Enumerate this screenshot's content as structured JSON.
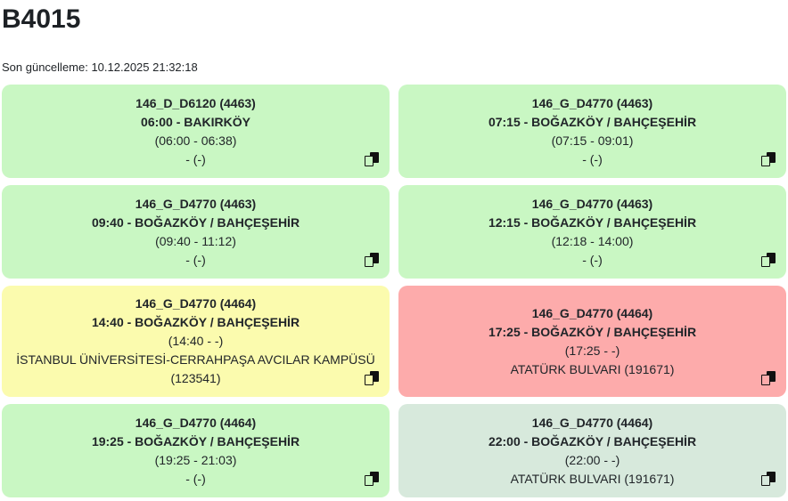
{
  "page": {
    "title": "B4015",
    "last_update": "Son güncelleme: 10.12.2025 21:32:18"
  },
  "colors": {
    "green_completed": "#c9f7c3",
    "yellow_warning": "#fbfbae",
    "red_alert": "#fdabab",
    "pale_green_pending": "#d7e9dc",
    "text": "#212529",
    "icon": "#111111"
  },
  "cards": [
    {
      "route_code": "146_D_D6120 (4463)",
      "destination": "06:00 - BAKIRKÖY",
      "time_range": "(06:00 - 06:38)",
      "note": "- (-)",
      "bg": "#c9f7c3",
      "status": "green"
    },
    {
      "route_code": "146_G_D4770 (4463)",
      "destination": "07:15 - BOĞAZKÖY / BAHÇEŞEHİR",
      "time_range": "(07:15 - 09:01)",
      "note": "- (-)",
      "bg": "#c9f7c3",
      "status": "green"
    },
    {
      "route_code": "146_G_D4770 (4463)",
      "destination": "09:40 - BOĞAZKÖY / BAHÇEŞEHİR",
      "time_range": "(09:40 - 11:12)",
      "note": "- (-)",
      "bg": "#c9f7c3",
      "status": "green"
    },
    {
      "route_code": "146_G_D4770 (4463)",
      "destination": "12:15 - BOĞAZKÖY / BAHÇEŞEHİR",
      "time_range": "(12:18 - 14:00)",
      "note": "- (-)",
      "bg": "#c9f7c3",
      "status": "green"
    },
    {
      "route_code": "146_G_D4770 (4464)",
      "destination": "14:40 - BOĞAZKÖY / BAHÇEŞEHİR",
      "time_range": "(14:40 - -)",
      "note": "İSTANBUL ÜNİVERSİTESİ-CERRAHPAŞA AVCILAR KAMPÜSÜ (123541)",
      "bg": "#fbfbae",
      "status": "yellow"
    },
    {
      "route_code": "146_G_D4770 (4464)",
      "destination": "17:25 - BOĞAZKÖY / BAHÇEŞEHİR",
      "time_range": "(17:25 - -)",
      "note": "ATATÜRK BULVARI (191671)",
      "bg": "#fdabab",
      "status": "red"
    },
    {
      "route_code": "146_G_D4770 (4464)",
      "destination": "19:25 - BOĞAZKÖY / BAHÇEŞEHİR",
      "time_range": "(19:25 - 21:03)",
      "note": "- (-)",
      "bg": "#c9f7c3",
      "status": "green"
    },
    {
      "route_code": "146_G_D4770 (4464)",
      "destination": "22:00 - BOĞAZKÖY / BAHÇEŞEHİR",
      "time_range": "(22:00 - -)",
      "note": "ATATÜRK BULVARI (191671)",
      "bg": "#d7e9dc",
      "status": "pale-green"
    }
  ]
}
